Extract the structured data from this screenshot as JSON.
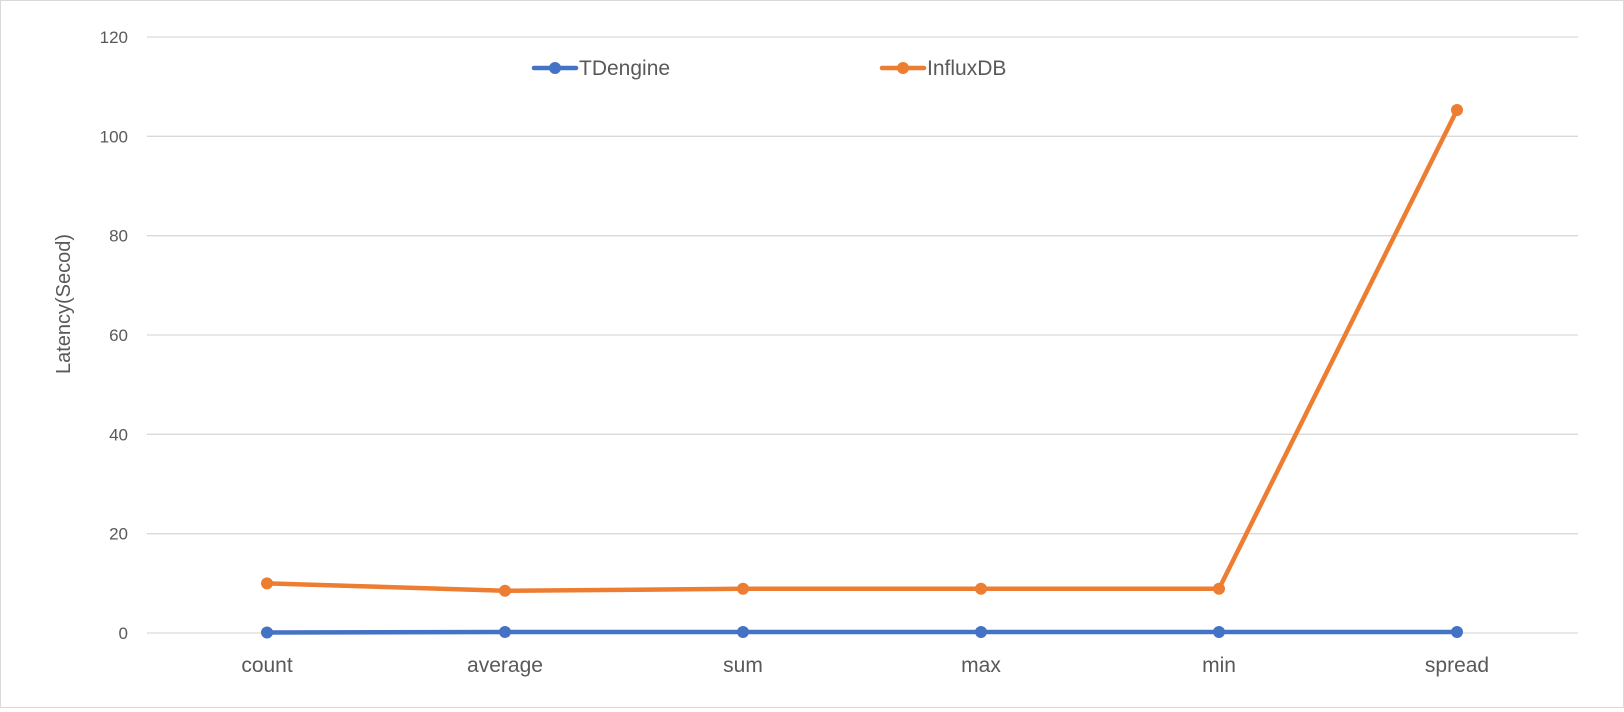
{
  "chart_data": {
    "type": "line",
    "title": "",
    "xlabel": "",
    "ylabel": "Latency(Secod)",
    "categories": [
      "count",
      "average",
      "sum",
      "max",
      "min",
      "spread"
    ],
    "series": [
      {
        "name": "TDengine",
        "color": "#4472C4",
        "values": [
          0.1,
          0.2,
          0.2,
          0.2,
          0.2,
          0.2
        ]
      },
      {
        "name": "InfluxDB",
        "color": "#ED7D31",
        "values": [
          10,
          8.5,
          8.9,
          8.9,
          8.9,
          105.3
        ]
      }
    ],
    "ylim": [
      0,
      120
    ],
    "yticks": [
      0,
      20,
      40,
      60,
      80,
      100,
      120
    ],
    "grid": true,
    "legend_position": "top-center"
  }
}
